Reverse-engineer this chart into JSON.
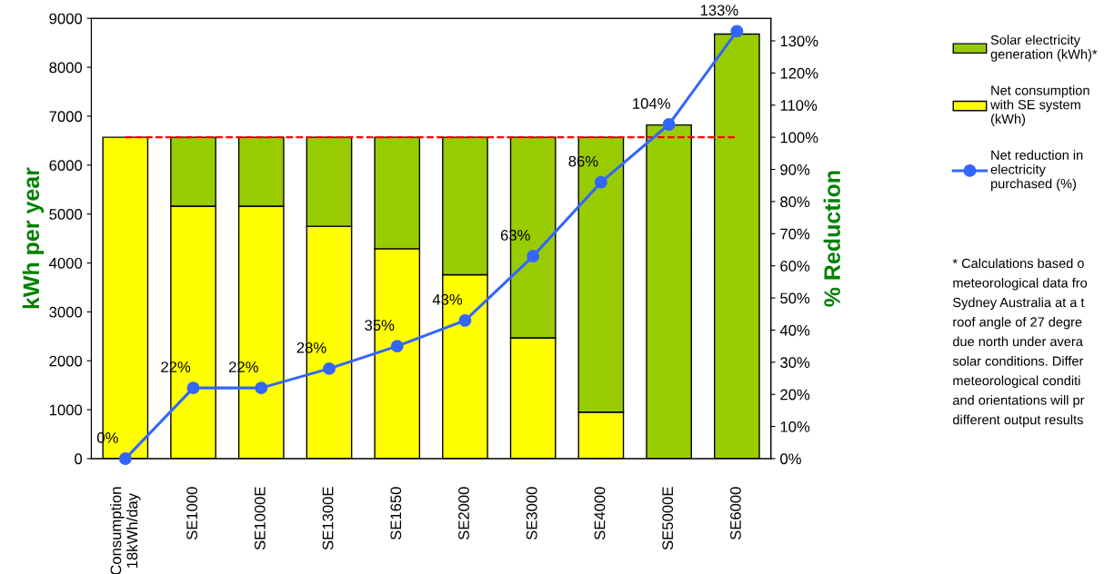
{
  "chart_data": {
    "type": "bar",
    "stacked": true,
    "ylabel": "kWh per year",
    "y2label": "% Reduction",
    "categories": [
      "Consumption\n18kWh/day",
      "SE1000",
      "SE1000E",
      "SE1300E",
      "SE1650",
      "SE2000",
      "SE3000",
      "SE4000",
      "SE5000E",
      "SE6000"
    ],
    "series": [
      {
        "name": "Net consumption with SE system (kWh)",
        "color": "#ffff00",
        "values": [
          6570,
          5160,
          5160,
          4750,
          4290,
          3760,
          2470,
          950,
          0,
          0
        ]
      },
      {
        "name": "Solar electricity generation (kWh)*",
        "color": "#99cc00",
        "values": [
          0,
          1410,
          1410,
          1820,
          2280,
          2810,
          4100,
          5620,
          6820,
          8680
        ]
      },
      {
        "name": "Net reduction in electricity purchased (%)",
        "type": "line",
        "axis": "y2",
        "color": "#3366ff",
        "marker": "circle",
        "values": [
          0,
          22,
          22,
          28,
          35,
          43,
          63,
          86,
          104,
          133
        ],
        "value_labels": [
          "0%",
          "22%",
          "22%",
          "28%",
          "35%",
          "43%",
          "63%",
          "86%",
          "104%",
          "133%"
        ]
      }
    ],
    "ylim": [
      0,
      9000
    ],
    "yticks": [
      0,
      1000,
      2000,
      3000,
      4000,
      5000,
      6000,
      7000,
      8000,
      9000
    ],
    "y2lim": [
      0,
      137
    ],
    "y2ticks": [
      {
        "value": 0,
        "label": "0%"
      },
      {
        "value": 10,
        "label": "10%"
      },
      {
        "value": 20,
        "label": "20%"
      },
      {
        "value": 30,
        "label": "30%"
      },
      {
        "value": 40,
        "label": "40%"
      },
      {
        "value": 50,
        "label": "50%"
      },
      {
        "value": 60,
        "label": "60%"
      },
      {
        "value": 70,
        "label": "70%"
      },
      {
        "value": 80,
        "label": "80%"
      },
      {
        "value": 90,
        "label": "90%"
      },
      {
        "value": 100,
        "label": "100%"
      },
      {
        "value": 110,
        "label": "110%"
      },
      {
        "value": 120,
        "label": "120%"
      },
      {
        "value": 130,
        "label": "130%"
      }
    ],
    "ref_lines": [
      {
        "axis": "y",
        "value": 6570,
        "color": "#ff0000",
        "line_style": "dashed"
      }
    ],
    "legend": "top right",
    "grid": false,
    "annotations": [
      "* Calculations based o\nmeteorological data fro\nSydney Australia at a t\nroof angle of 27 degre\ndue north under avera\nsolar conditions. Differ\nmeteorological conditi\nand orientations will pr\ndifferent output results"
    ]
  }
}
